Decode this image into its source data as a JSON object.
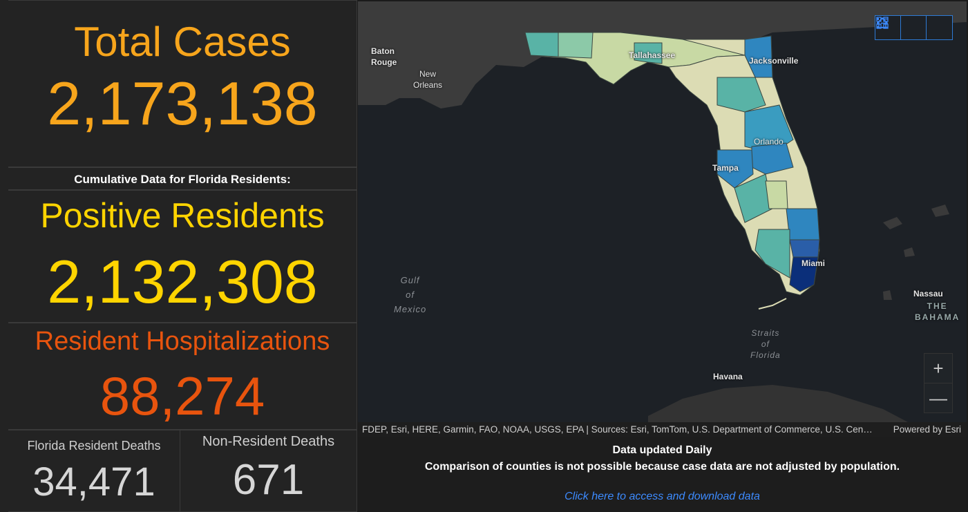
{
  "total_cases": {
    "title": "Total Cases",
    "value": "2,173,138"
  },
  "cumulative_heading": "Cumulative Data for Florida Residents:",
  "positive_residents": {
    "title": "Positive Residents",
    "value": "2,132,308"
  },
  "hospitalizations": {
    "title": "Resident Hospitalizations",
    "value": "88,274"
  },
  "resident_deaths": {
    "title": "Florida Resident Deaths",
    "value": "34,471"
  },
  "nonresident_deaths": {
    "title": "Non-Resident Deaths",
    "value": "671"
  },
  "map": {
    "labels": {
      "baton_rouge": "Baton\nRouge",
      "new_orleans": "New\nOrleans",
      "tallahassee": "Tallahassee",
      "jacksonville": "Jacksonville",
      "orlando": "Orlando",
      "tampa": "Tampa",
      "miami": "Miami",
      "nassau": "Nassau",
      "bahamas": "THE\nBAHAMA",
      "havana": "Havana",
      "gulf": "Gulf\nof\nMexico",
      "straits": "Straits\nof\nFlorida"
    },
    "widgets": [
      "home-icon",
      "legend-icon",
      "basemap-gallery-icon"
    ],
    "zoom_in": "+",
    "zoom_out": "—"
  },
  "attribution": {
    "sources": "FDEP, Esri, HERE, Garmin, FAO, NOAA, USGS, EPA | Sources: Esri, TomTom, U.S. Department of Commerce, U.S. Census Bureau",
    "powered": "Powered by Esri"
  },
  "footer": {
    "line1": "Data updated Daily",
    "line2": "Comparison of counties is not possible because case data are not adjusted by population.",
    "link": "Click here to access and download data"
  },
  "colors": {
    "total": "#f7a51c",
    "positive": "#ffd400",
    "hospital": "#e8540e",
    "link": "#3d8bff"
  }
}
